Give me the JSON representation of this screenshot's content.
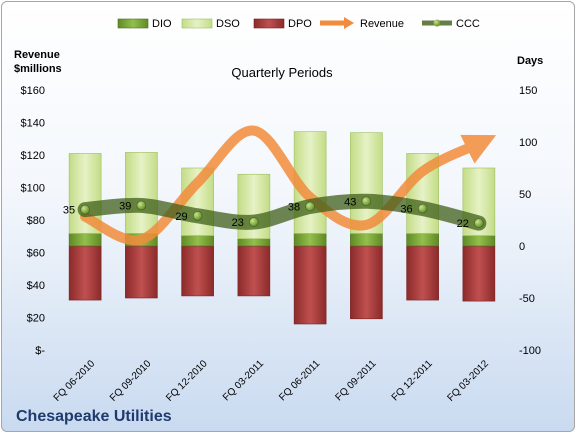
{
  "chart_data": {
    "type": "bar",
    "title": "Quarterly Periods",
    "footer": "Chesapeake Utilities",
    "ylabel_left": [
      "Revenue",
      "$millions"
    ],
    "ylabel_right": "Days",
    "categories": [
      "FQ 06-2010",
      "FQ 09-2010",
      "FQ 12-2010",
      "FQ 03-2011",
      "FQ 06-2011",
      "FQ 09-2011",
      "FQ 12-2011",
      "FQ 03-2012"
    ],
    "left_axis": {
      "min": 0,
      "max": 160,
      "step": 20,
      "tick_labels": [
        "$-",
        "$20",
        "$40",
        "$60",
        "$80",
        "$100",
        "$120",
        "$140",
        "$160"
      ]
    },
    "right_axis": {
      "min": -100,
      "max": 150,
      "step": 50,
      "tick_labels": [
        "-100",
        "-50",
        "0",
        "50",
        "100",
        "150"
      ]
    },
    "legend_position": "top",
    "series": [
      {
        "name": "DIO",
        "axis": "right",
        "color": "#7ba33a",
        "values": [
          12,
          12,
          10,
          7,
          12,
          12,
          12,
          10
        ]
      },
      {
        "name": "DSO",
        "axis": "right",
        "color": "#d5e8a8",
        "values": [
          77,
          78,
          65,
          62,
          98,
          97,
          77,
          65
        ]
      },
      {
        "name": "DPO",
        "axis": "right",
        "color": "#a83a3a",
        "values": [
          -52,
          -50,
          -48,
          -48,
          -75,
          -70,
          -52,
          -53
        ]
      },
      {
        "name": "Revenue",
        "axis": "left",
        "color": "#f28c3c",
        "values": [
          82,
          68,
          103,
          135,
          94,
          77,
          110,
          127
        ]
      },
      {
        "name": "CCC",
        "axis": "right",
        "color": "#4a6e1f",
        "values": [
          35,
          39,
          29,
          23,
          38,
          43,
          36,
          22
        ]
      }
    ],
    "data_labels": [
      "35",
      "39",
      "29",
      "23",
      "38",
      "43",
      "36",
      "22"
    ],
    "grid": false
  },
  "colors": {
    "dio": "#7ba33a",
    "dso": "#d5e8a8",
    "dpo": "#a83a3a",
    "revenue": "#f28c3c",
    "ccc": "#4a6e1f"
  }
}
